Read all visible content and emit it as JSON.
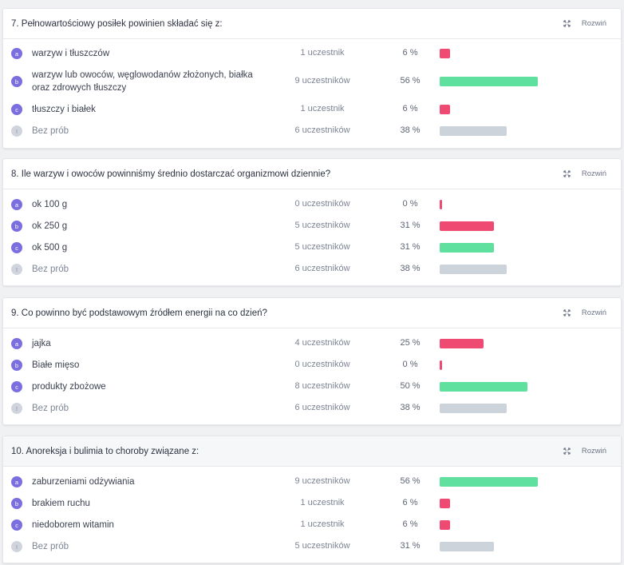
{
  "expand_label": "Rozwiń",
  "colors": {
    "red": "#ef4b72",
    "green": "#5fe09e",
    "gray": "#cdd3db",
    "badge": "#7b6fe0"
  },
  "questions": [
    {
      "title": "7. Pełnowartościowy posiłek powinien składać się z:",
      "answers": [
        {
          "letter": "a",
          "text": "warzyw i tłuszczów",
          "count": "1 uczestnik",
          "percent": "6 %",
          "value": 6,
          "color": "red"
        },
        {
          "letter": "b",
          "text": "warzyw lub owoców, węglowodanów złożonych, białka oraz zdrowych tłuszczy",
          "count": "9 uczestników",
          "percent": "56 %",
          "value": 56,
          "color": "green"
        },
        {
          "letter": "c",
          "text": "tłuszczy i białek",
          "count": "1 uczestnik",
          "percent": "6 %",
          "value": 6,
          "color": "red"
        },
        {
          "letter": "!",
          "text": "Bez prób",
          "count": "6 uczestników",
          "percent": "38 %",
          "value": 38,
          "color": "gray",
          "none": true
        }
      ]
    },
    {
      "title": "8. Ile warzyw i owoców powinniśmy średnio dostarczać organizmowi dziennie?",
      "answers": [
        {
          "letter": "a",
          "text": "ok 100 g",
          "count": "0 uczestników",
          "percent": "0 %",
          "value": 0,
          "color": "red"
        },
        {
          "letter": "b",
          "text": "ok 250 g",
          "count": "5 uczestników",
          "percent": "31 %",
          "value": 31,
          "color": "red"
        },
        {
          "letter": "c",
          "text": "ok 500 g",
          "count": "5 uczestników",
          "percent": "31 %",
          "value": 31,
          "color": "green"
        },
        {
          "letter": "!",
          "text": "Bez prób",
          "count": "6 uczestników",
          "percent": "38 %",
          "value": 38,
          "color": "gray",
          "none": true
        }
      ]
    },
    {
      "title": "9. Co powinno być podstawowym źródłem energii na co dzień?",
      "answers": [
        {
          "letter": "a",
          "text": "jajka",
          "count": "4 uczestników",
          "percent": "25 %",
          "value": 25,
          "color": "red"
        },
        {
          "letter": "b",
          "text": "Białe mięso",
          "count": "0 uczestników",
          "percent": "0 %",
          "value": 0,
          "color": "red"
        },
        {
          "letter": "c",
          "text": "produkty zbożowe",
          "count": "8 uczestników",
          "percent": "50 %",
          "value": 50,
          "color": "green"
        },
        {
          "letter": "!",
          "text": "Bez prób",
          "count": "6 uczestników",
          "percent": "38 %",
          "value": 38,
          "color": "gray",
          "none": true
        }
      ]
    },
    {
      "title": "10. Anoreksja i bulimia to choroby związane z:",
      "answers": [
        {
          "letter": "a",
          "text": "zaburzeniami odżywiania",
          "count": "9 uczestników",
          "percent": "56 %",
          "value": 56,
          "color": "green"
        },
        {
          "letter": "b",
          "text": "brakiem ruchu",
          "count": "1 uczestnik",
          "percent": "6 %",
          "value": 6,
          "color": "red"
        },
        {
          "letter": "c",
          "text": "niedoborem witamin",
          "count": "1 uczestnik",
          "percent": "6 %",
          "value": 6,
          "color": "red"
        },
        {
          "letter": "!",
          "text": "Bez prób",
          "count": "5 uczestników",
          "percent": "31 %",
          "value": 31,
          "color": "gray",
          "none": true
        }
      ]
    }
  ]
}
